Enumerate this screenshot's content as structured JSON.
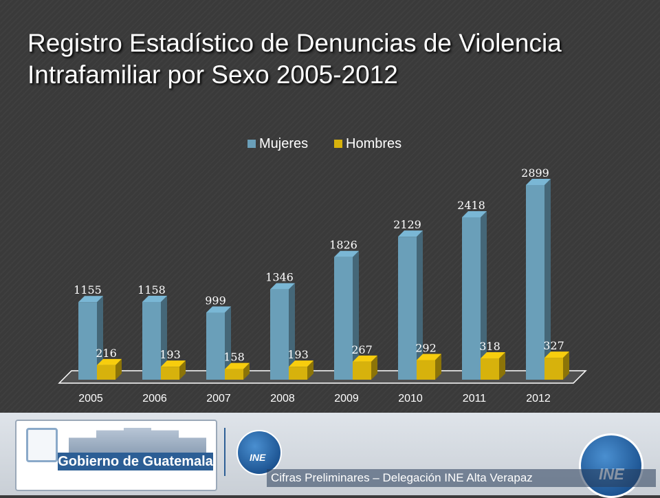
{
  "title_line1": "Registro Estadístico de Denuncias de Violencia",
  "title_line2": "Intrafamiliar por Sexo 2005-2012",
  "chart_data": {
    "type": "bar",
    "categories": [
      "2005",
      "2006",
      "2007",
      "2008",
      "2009",
      "2010",
      "2011",
      "2012"
    ],
    "series": [
      {
        "name": "Mujeres",
        "values": [
          1155,
          1158,
          999,
          1346,
          1826,
          2129,
          2418,
          2899
        ],
        "color": "#6a9fb9"
      },
      {
        "name": "Hombres",
        "values": [
          216,
          193,
          158,
          193,
          267,
          292,
          318,
          327
        ],
        "color": "#d7b20c"
      }
    ],
    "legend": "top",
    "ylim": [
      0,
      2899
    ],
    "grid": false
  },
  "footer": {
    "gov_label": "Gobierno de Guatemala",
    "ine_label": "INE",
    "credit": "Cifras Preliminares – Delegación INE Alta Verapaz"
  }
}
